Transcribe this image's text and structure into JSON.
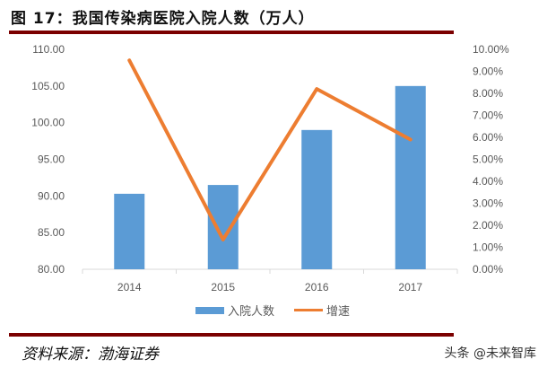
{
  "title": "图 17：我国传染病医院入院人数（万人）",
  "source": "资料来源：渤海证券",
  "watermark": "头条 @未来智库",
  "legend": {
    "bar_label": "入院人数",
    "line_label": "增速"
  },
  "colors": {
    "bar": "#5b9bd5",
    "line": "#ed7d31",
    "rule": "#7b0000"
  },
  "chart_data": {
    "type": "bar+line",
    "title": "我国传染病医院入院人数（万人）",
    "categories": [
      "2014",
      "2015",
      "2016",
      "2017"
    ],
    "series": [
      {
        "name": "入院人数",
        "type": "bar",
        "axis": "left",
        "values": [
          90.3,
          91.5,
          99.0,
          105.0
        ]
      },
      {
        "name": "增速",
        "type": "line",
        "axis": "right",
        "values": [
          0.095,
          0.0135,
          0.082,
          0.059
        ]
      }
    ],
    "left_axis": {
      "ylim": [
        80,
        110
      ],
      "ticks": [
        "80.00",
        "85.00",
        "90.00",
        "95.00",
        "100.00",
        "105.00",
        "110.00"
      ]
    },
    "right_axis": {
      "ylim": [
        0,
        0.1
      ],
      "ticks": [
        "0.00%",
        "1.00%",
        "2.00%",
        "3.00%",
        "4.00%",
        "5.00%",
        "6.00%",
        "7.00%",
        "8.00%",
        "9.00%",
        "10.00%"
      ]
    },
    "grid": false,
    "legend_position": "bottom"
  }
}
